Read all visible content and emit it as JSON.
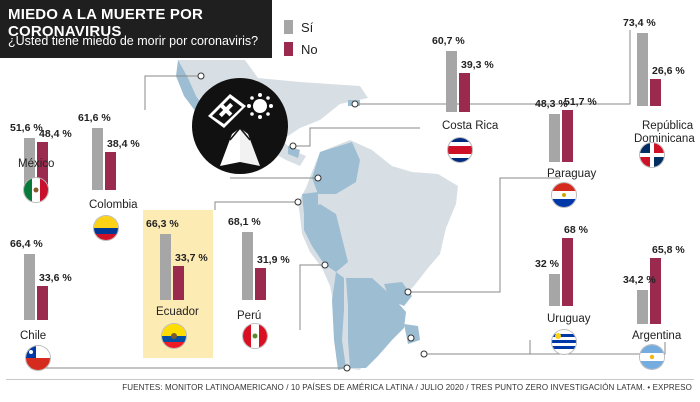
{
  "header": {
    "title": "MIEDO A LA MUERTE POR CORONAVIRUS",
    "subtitle": "¿Usted tiene miedo de morir por coronaviris?"
  },
  "legend": {
    "si_label": "Sí",
    "no_label": "No"
  },
  "colors": {
    "si": "#a6a6a6",
    "no": "#9b2a4f",
    "land": "#d8dfe4",
    "south_america": "#9dbdd2",
    "highlight": "#fdebb4"
  },
  "source": "FUENTES: MONITOR LATINOAMERICANO / 10 PAÍSES DE AMÉRICA LATINA / JULIO 2020 / TRES PUNTO ZERO INVESTIGACIÓN LATAM. • EXPRESO",
  "icons": [
    "coffin-cross-icon",
    "virus-icon",
    "praying-hands-icon"
  ],
  "chart_data": {
    "type": "bar",
    "title": "MIEDO A LA MUERTE POR CORONAVIRUS",
    "categories": [
      "México",
      "Colombia",
      "Chile",
      "Ecuador",
      "Perú",
      "Costa Rica",
      "Paraguay",
      "República Dominicana",
      "Uruguay",
      "Argentina"
    ],
    "series": [
      {
        "name": "Sí",
        "values": [
          51.6,
          61.6,
          66.4,
          66.3,
          68.1,
          60.7,
          48.3,
          73.4,
          32,
          34.2
        ],
        "labels": [
          "51,6 %",
          "61,6 %",
          "66,4 %",
          "66,3 %",
          "68,1 %",
          "60,7 %",
          "48,3 %",
          "73,4 %",
          "32 %",
          "34,2 %"
        ]
      },
      {
        "name": "No",
        "values": [
          48.4,
          38.4,
          33.6,
          33.7,
          31.9,
          39.3,
          51.7,
          26.6,
          68,
          65.8
        ],
        "labels": [
          "48,4 %",
          "38,4 %",
          "33,6 %",
          "33,7 %",
          "31,9 %",
          "39,3 %",
          "51,7 %",
          "26,6 %",
          "68 %",
          "65,8 %"
        ]
      }
    ],
    "highlighted": "Ecuador",
    "ylim": [
      0,
      100
    ]
  }
}
